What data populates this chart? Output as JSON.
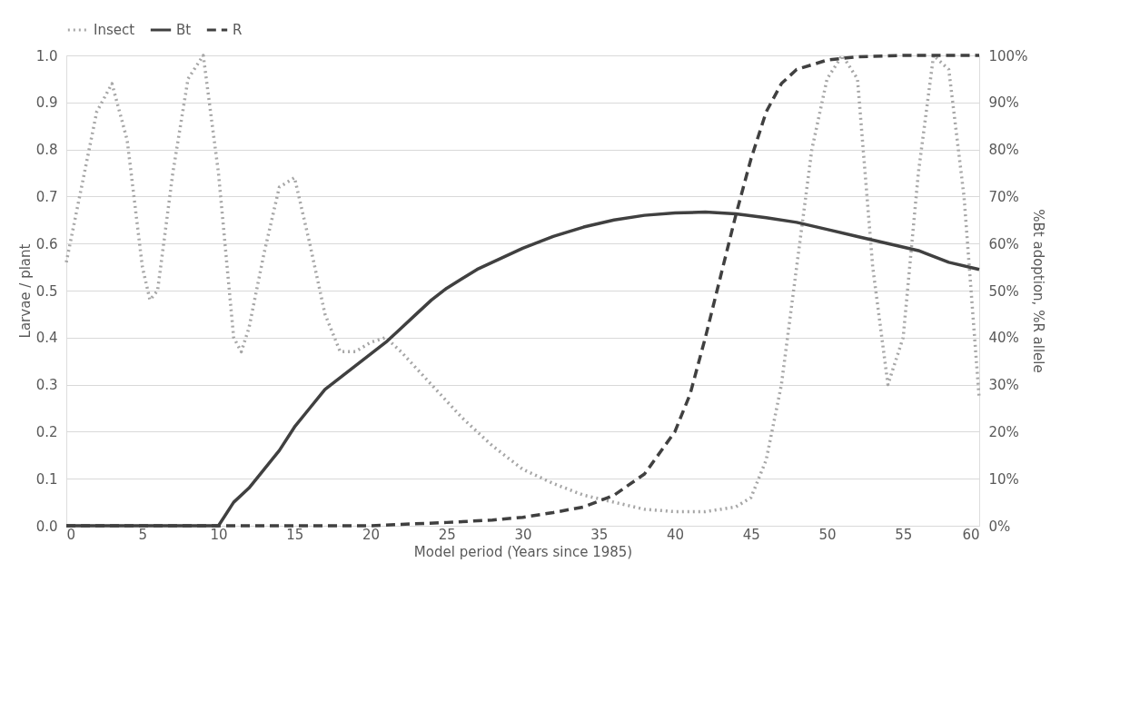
{
  "chart_data": {
    "type": "line",
    "xlabel": "Model period (Years since 1985)",
    "ylabel": "Larvae / plant",
    "y2label": "%Bt adoption, %R allele",
    "xlim": [
      0,
      60
    ],
    "xticks": [
      0,
      5,
      10,
      15,
      20,
      25,
      30,
      35,
      40,
      45,
      50,
      55,
      60
    ],
    "ylim": [
      0,
      1
    ],
    "yticks": [
      {
        "value": 0,
        "label": "0.0"
      },
      0.1,
      0.2,
      0.3,
      0.4,
      0.5,
      0.6,
      0.7,
      0.8,
      0.9,
      {
        "value": 1,
        "label": "1.0"
      }
    ],
    "y2lim": [
      0,
      100
    ],
    "y2ticks": [
      {
        "value": 0,
        "label": "0%"
      },
      {
        "value": 10,
        "label": "10%"
      },
      {
        "value": 20,
        "label": "20%"
      },
      {
        "value": 30,
        "label": "30%"
      },
      {
        "value": 40,
        "label": "40%"
      },
      {
        "value": 50,
        "label": "50%"
      },
      {
        "value": 60,
        "label": "60%"
      },
      {
        "value": 70,
        "label": "70%"
      },
      {
        "value": 80,
        "label": "80%"
      },
      {
        "value": 90,
        "label": "90%"
      },
      {
        "value": 100,
        "label": "100%"
      }
    ],
    "grid": "y",
    "legend": "top",
    "marker": "none",
    "series": [
      {
        "name": "Insect",
        "color": "#a6a6a6",
        "line_style": "dotted",
        "x": [
          0,
          1,
          2,
          3,
          4,
          5,
          5.5,
          6,
          7,
          8,
          9,
          10,
          11,
          11.5,
          12,
          13,
          14,
          15,
          16,
          17,
          18,
          19,
          20,
          21,
          22,
          24,
          26,
          28,
          30,
          32,
          34,
          36,
          38,
          40,
          42,
          44,
          45,
          46,
          47,
          48,
          49,
          50,
          51,
          52,
          53,
          54,
          55,
          56,
          57,
          58,
          59,
          60
        ],
        "values": [
          0.56,
          0.72,
          0.88,
          0.94,
          0.82,
          0.55,
          0.48,
          0.5,
          0.75,
          0.95,
          1.0,
          0.75,
          0.4,
          0.37,
          0.42,
          0.58,
          0.72,
          0.74,
          0.6,
          0.45,
          0.37,
          0.37,
          0.39,
          0.4,
          0.37,
          0.3,
          0.23,
          0.17,
          0.12,
          0.09,
          0.065,
          0.05,
          0.035,
          0.03,
          0.03,
          0.04,
          0.06,
          0.14,
          0.3,
          0.55,
          0.8,
          0.95,
          1.0,
          0.95,
          0.55,
          0.3,
          0.4,
          0.75,
          1.0,
          0.97,
          0.7,
          0.27
        ]
      },
      {
        "name": "Bt",
        "color": "#404040",
        "line_style": "solid",
        "axis": "y2",
        "x": [
          0,
          10,
          11,
          12,
          13,
          14,
          15,
          16,
          17,
          18,
          19,
          20,
          21,
          22,
          23,
          24,
          25,
          26,
          27,
          28,
          30,
          32,
          34,
          36,
          38,
          40,
          42,
          44,
          46,
          48,
          50,
          52,
          54,
          56,
          58,
          60
        ],
        "values": [
          0,
          0,
          5,
          8,
          12,
          16,
          21,
          25,
          29,
          31.5,
          34,
          36.5,
          39,
          42,
          45,
          48,
          50.5,
          52.5,
          54.5,
          56,
          59,
          61.5,
          63.5,
          65,
          66,
          66.5,
          66.7,
          66.3,
          65.5,
          64.5,
          63,
          61.5,
          60,
          58.5,
          56,
          54.5
        ]
      },
      {
        "name": "R",
        "color": "#404040",
        "line_style": "dashed",
        "axis": "y2",
        "x": [
          0,
          20,
          22,
          25,
          28,
          30,
          32,
          34,
          36,
          38,
          40,
          41,
          42,
          43,
          44,
          45,
          46,
          47,
          48,
          50,
          52,
          55,
          60
        ],
        "values": [
          0,
          0,
          0.3,
          0.7,
          1.2,
          1.8,
          2.8,
          4,
          6.5,
          11,
          20,
          28,
          40,
          53,
          66,
          78,
          88,
          94,
          97,
          99,
          99.7,
          100,
          100
        ]
      }
    ]
  }
}
